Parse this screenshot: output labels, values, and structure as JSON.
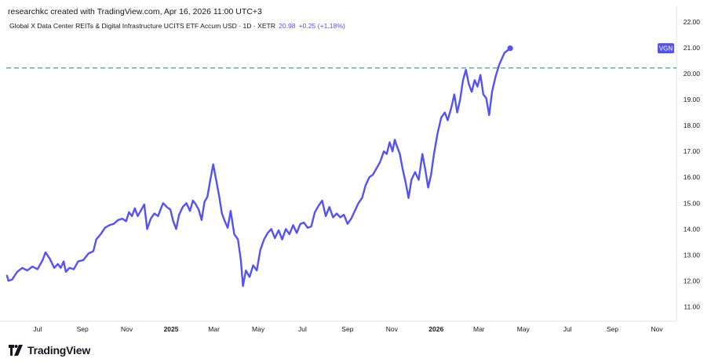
{
  "header": {
    "attribution": "researchkc created with TradingView.com, Apr 16, 2026 11:00 UTC+3",
    "symbol_line": "Global X Data Center REITs & Digital Infrastructure UCITS ETF Accum USD · 1D · XETR",
    "last_close": "20.98",
    "change": "+0.25 (+1.18%)"
  },
  "footer": {
    "brand": "TradingView",
    "logo_icon": "tradingview-logo-icon"
  },
  "colors": {
    "line": "#5452f0",
    "dashed_level": "#3fa18e",
    "badge_bg": "#5452f0",
    "grid": "#f0f3fa",
    "axis_border": "#e0e3eb"
  },
  "chart_data": {
    "type": "line",
    "title": "",
    "xlabel": "",
    "ylabel": "",
    "series": [
      {
        "name": "VGN",
        "points": [
          [
            "2024-05-20",
            12.2
          ],
          [
            "2024-05-22",
            12.0
          ],
          [
            "2024-05-27",
            12.05
          ],
          [
            "2024-06-03",
            12.35
          ],
          [
            "2024-06-10",
            12.5
          ],
          [
            "2024-06-17",
            12.4
          ],
          [
            "2024-06-24",
            12.55
          ],
          [
            "2024-07-01",
            12.45
          ],
          [
            "2024-07-08",
            12.8
          ],
          [
            "2024-07-12",
            13.1
          ],
          [
            "2024-07-18",
            12.85
          ],
          [
            "2024-07-24",
            12.5
          ],
          [
            "2024-07-29",
            12.65
          ],
          [
            "2024-08-02",
            12.5
          ],
          [
            "2024-08-06",
            12.75
          ],
          [
            "2024-08-09",
            12.35
          ],
          [
            "2024-08-14",
            12.5
          ],
          [
            "2024-08-20",
            12.45
          ],
          [
            "2024-08-26",
            12.75
          ],
          [
            "2024-09-02",
            12.8
          ],
          [
            "2024-09-09",
            13.05
          ],
          [
            "2024-09-16",
            13.15
          ],
          [
            "2024-09-20",
            13.6
          ],
          [
            "2024-09-26",
            13.8
          ],
          [
            "2024-10-02",
            14.05
          ],
          [
            "2024-10-08",
            14.15
          ],
          [
            "2024-10-14",
            14.2
          ],
          [
            "2024-10-20",
            14.35
          ],
          [
            "2024-10-26",
            14.4
          ],
          [
            "2024-10-31",
            14.3
          ],
          [
            "2024-11-04",
            14.65
          ],
          [
            "2024-11-08",
            14.5
          ],
          [
            "2024-11-12",
            14.8
          ],
          [
            "2024-11-16",
            14.5
          ],
          [
            "2024-11-20",
            14.7
          ],
          [
            "2024-11-25",
            14.95
          ],
          [
            "2024-11-29",
            14.0
          ],
          [
            "2024-12-04",
            14.4
          ],
          [
            "2024-12-09",
            14.6
          ],
          [
            "2024-12-14",
            14.5
          ],
          [
            "2024-12-18",
            14.8
          ],
          [
            "2024-12-21",
            15.0
          ],
          [
            "2024-12-26",
            14.85
          ],
          [
            "2024-12-31",
            14.75
          ],
          [
            "2025-01-04",
            14.3
          ],
          [
            "2025-01-08",
            14.0
          ],
          [
            "2025-01-12",
            14.55
          ],
          [
            "2025-01-17",
            14.85
          ],
          [
            "2025-01-22",
            15.0
          ],
          [
            "2025-01-27",
            14.7
          ],
          [
            "2025-01-31",
            15.1
          ],
          [
            "2025-02-04",
            14.95
          ],
          [
            "2025-02-08",
            14.75
          ],
          [
            "2025-02-12",
            14.35
          ],
          [
            "2025-02-16",
            15.05
          ],
          [
            "2025-02-20",
            15.25
          ],
          [
            "2025-02-24",
            15.9
          ],
          [
            "2025-02-28",
            16.5
          ],
          [
            "2025-03-04",
            15.9
          ],
          [
            "2025-03-08",
            15.3
          ],
          [
            "2025-03-12",
            14.6
          ],
          [
            "2025-03-16",
            14.3
          ],
          [
            "2025-03-20",
            14.05
          ],
          [
            "2025-03-24",
            14.7
          ],
          [
            "2025-03-29",
            13.8
          ],
          [
            "2025-04-03",
            13.6
          ],
          [
            "2025-04-07",
            12.8
          ],
          [
            "2025-04-10",
            11.8
          ],
          [
            "2025-04-14",
            12.4
          ],
          [
            "2025-04-19",
            12.15
          ],
          [
            "2025-04-24",
            12.6
          ],
          [
            "2025-04-29",
            12.4
          ],
          [
            "2025-05-04",
            13.2
          ],
          [
            "2025-05-09",
            13.6
          ],
          [
            "2025-05-14",
            13.85
          ],
          [
            "2025-05-19",
            14.0
          ],
          [
            "2025-05-24",
            13.65
          ],
          [
            "2025-05-29",
            13.95
          ],
          [
            "2025-06-03",
            13.6
          ],
          [
            "2025-06-08",
            14.0
          ],
          [
            "2025-06-13",
            13.8
          ],
          [
            "2025-06-18",
            14.15
          ],
          [
            "2025-06-23",
            13.85
          ],
          [
            "2025-06-28",
            14.2
          ],
          [
            "2025-07-03",
            14.25
          ],
          [
            "2025-07-08",
            14.05
          ],
          [
            "2025-07-13",
            14.1
          ],
          [
            "2025-07-18",
            14.65
          ],
          [
            "2025-07-23",
            14.9
          ],
          [
            "2025-07-28",
            15.1
          ],
          [
            "2025-08-02",
            14.5
          ],
          [
            "2025-08-07",
            14.85
          ],
          [
            "2025-08-12",
            14.45
          ],
          [
            "2025-08-17",
            14.6
          ],
          [
            "2025-08-22",
            14.45
          ],
          [
            "2025-08-27",
            14.55
          ],
          [
            "2025-09-01",
            14.2
          ],
          [
            "2025-09-06",
            14.4
          ],
          [
            "2025-09-11",
            14.7
          ],
          [
            "2025-09-16",
            15.0
          ],
          [
            "2025-09-21",
            15.2
          ],
          [
            "2025-09-26",
            15.7
          ],
          [
            "2025-10-01",
            16.0
          ],
          [
            "2025-10-06",
            16.1
          ],
          [
            "2025-10-11",
            16.35
          ],
          [
            "2025-10-16",
            16.6
          ],
          [
            "2025-10-21",
            17.0
          ],
          [
            "2025-10-25",
            16.9
          ],
          [
            "2025-10-29",
            17.35
          ],
          [
            "2025-11-02",
            17.0
          ],
          [
            "2025-11-05",
            17.45
          ],
          [
            "2025-11-08",
            17.2
          ],
          [
            "2025-11-12",
            16.9
          ],
          [
            "2025-11-16",
            16.3
          ],
          [
            "2025-11-20",
            15.8
          ],
          [
            "2025-11-24",
            15.2
          ],
          [
            "2025-11-28",
            15.9
          ],
          [
            "2025-12-03",
            16.2
          ],
          [
            "2025-12-08",
            15.9
          ],
          [
            "2025-12-13",
            16.9
          ],
          [
            "2025-12-17",
            16.3
          ],
          [
            "2025-12-21",
            15.6
          ],
          [
            "2025-12-25",
            16.1
          ],
          [
            "2025-12-29",
            16.9
          ],
          [
            "2026-01-03",
            17.7
          ],
          [
            "2026-01-08",
            18.3
          ],
          [
            "2026-01-13",
            18.5
          ],
          [
            "2026-01-17",
            18.2
          ],
          [
            "2026-01-22",
            18.7
          ],
          [
            "2026-01-26",
            19.2
          ],
          [
            "2026-01-30",
            18.5
          ],
          [
            "2026-02-03",
            19.0
          ],
          [
            "2026-02-07",
            19.75
          ],
          [
            "2026-02-11",
            20.15
          ],
          [
            "2026-02-15",
            19.6
          ],
          [
            "2026-02-19",
            19.3
          ],
          [
            "2026-02-23",
            19.75
          ],
          [
            "2026-02-27",
            19.5
          ],
          [
            "2026-03-03",
            19.95
          ],
          [
            "2026-03-07",
            19.2
          ],
          [
            "2026-03-11",
            19.05
          ],
          [
            "2026-03-15",
            18.4
          ],
          [
            "2026-03-19",
            19.3
          ],
          [
            "2026-03-24",
            19.9
          ],
          [
            "2026-03-29",
            20.35
          ],
          [
            "2026-04-05",
            20.8
          ],
          [
            "2026-04-13",
            20.98
          ]
        ]
      }
    ],
    "horizontal_level": 20.22,
    "last_value": 20.98,
    "symbol_badge": "VGN",
    "x_ticks": [
      {
        "label": "Jul",
        "date": "2024-07-01",
        "bold": false
      },
      {
        "label": "Sep",
        "date": "2024-09-01",
        "bold": false
      },
      {
        "label": "Nov",
        "date": "2024-11-01",
        "bold": false
      },
      {
        "label": "2025",
        "date": "2025-01-01",
        "bold": true
      },
      {
        "label": "Mar",
        "date": "2025-03-01",
        "bold": false
      },
      {
        "label": "May",
        "date": "2025-05-01",
        "bold": false
      },
      {
        "label": "Jul",
        "date": "2025-07-01",
        "bold": false
      },
      {
        "label": "Sep",
        "date": "2025-09-01",
        "bold": false
      },
      {
        "label": "Nov",
        "date": "2025-11-01",
        "bold": false
      },
      {
        "label": "2026",
        "date": "2026-01-01",
        "bold": true
      },
      {
        "label": "Mar",
        "date": "2026-03-01",
        "bold": false
      },
      {
        "label": "May",
        "date": "2026-05-01",
        "bold": false
      },
      {
        "label": "Jul",
        "date": "2026-07-01",
        "bold": false
      },
      {
        "label": "Sep",
        "date": "2026-09-01",
        "bold": false
      },
      {
        "label": "Nov",
        "date": "2026-11-01",
        "bold": false
      }
    ],
    "y_ticks": [
      "11.00",
      "12.00",
      "13.00",
      "14.00",
      "15.00",
      "16.00",
      "17.00",
      "18.00",
      "19.00",
      "20.00",
      "21.00",
      "22.00"
    ],
    "x_range": [
      "2024-05-19",
      "2026-11-28"
    ],
    "ylim": [
      10.5,
      22.3
    ],
    "grid": false,
    "axis_position": "right"
  }
}
